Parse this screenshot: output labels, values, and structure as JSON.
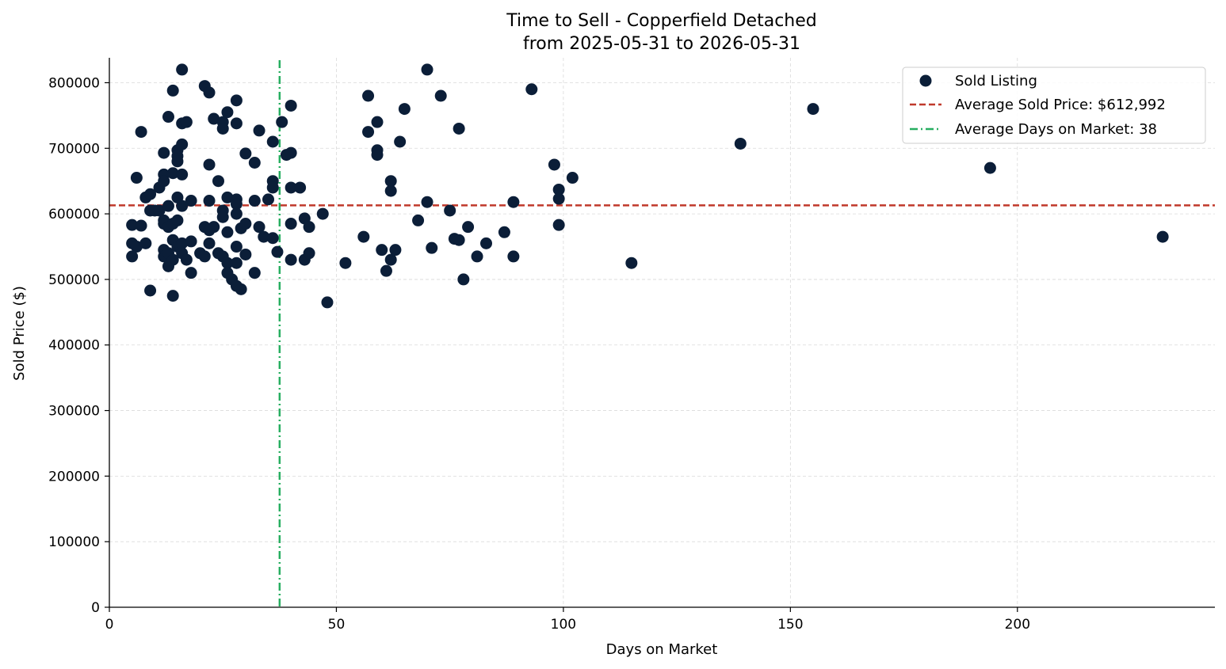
{
  "chart_data": {
    "type": "scatter",
    "title": "Time to Sell - Copperfield Detached",
    "subtitle": "from 2025-05-31 to 2026-05-31",
    "xlabel": "Days on Market",
    "ylabel": "Sold Price ($)",
    "xlim": [
      0,
      243.5
    ],
    "ylim": [
      0,
      838000
    ],
    "x_ticks": [
      0,
      50,
      100,
      150,
      200
    ],
    "y_ticks": [
      0,
      100000,
      200000,
      300000,
      400000,
      500000,
      600000,
      700000,
      800000
    ],
    "grid": true,
    "legend_position": "top-right",
    "colors": {
      "points": "#0b1e38",
      "avg_price_line": "#c0392b",
      "avg_days_line": "#27ae60",
      "grid": "#d9d9d9"
    },
    "reference_lines": [
      {
        "type": "horizontal",
        "label": "Average Sold Price: $612,992",
        "value": 612992,
        "style": "dashed"
      },
      {
        "type": "vertical",
        "label": "Average Days on Market: 38",
        "value": 37.5,
        "style": "dashdot"
      }
    ],
    "series": [
      {
        "name": "Sold Listing",
        "points": [
          [
            5,
            583000
          ],
          [
            5,
            555000
          ],
          [
            5,
            535000
          ],
          [
            6,
            655000
          ],
          [
            6,
            550000
          ],
          [
            7,
            725000
          ],
          [
            7,
            582000
          ],
          [
            8,
            625000
          ],
          [
            8,
            555000
          ],
          [
            9,
            630000
          ],
          [
            9,
            605000
          ],
          [
            9,
            483000
          ],
          [
            10,
            605000
          ],
          [
            11,
            640000
          ],
          [
            11,
            605000
          ],
          [
            12,
            693000
          ],
          [
            12,
            660000
          ],
          [
            12,
            650000
          ],
          [
            12,
            590000
          ],
          [
            12,
            585000
          ],
          [
            12,
            545000
          ],
          [
            12,
            535000
          ],
          [
            13,
            748000
          ],
          [
            13,
            612000
          ],
          [
            13,
            580000
          ],
          [
            13,
            540000
          ],
          [
            13,
            520000
          ],
          [
            14,
            788000
          ],
          [
            14,
            662000
          ],
          [
            14,
            585000
          ],
          [
            14,
            560000
          ],
          [
            14,
            530000
          ],
          [
            14,
            475000
          ],
          [
            15,
            697000
          ],
          [
            15,
            688000
          ],
          [
            15,
            680000
          ],
          [
            15,
            625000
          ],
          [
            15,
            590000
          ],
          [
            15,
            550000
          ],
          [
            16,
            820000
          ],
          [
            16,
            738000
          ],
          [
            16,
            706000
          ],
          [
            16,
            660000
          ],
          [
            16,
            612000
          ],
          [
            16,
            555000
          ],
          [
            16,
            540000
          ],
          [
            17,
            740000
          ],
          [
            17,
            530000
          ],
          [
            18,
            620000
          ],
          [
            18,
            558000
          ],
          [
            18,
            510000
          ],
          [
            20,
            540000
          ],
          [
            21,
            795000
          ],
          [
            21,
            580000
          ],
          [
            21,
            535000
          ],
          [
            22,
            785000
          ],
          [
            22,
            675000
          ],
          [
            22,
            620000
          ],
          [
            22,
            575000
          ],
          [
            22,
            555000
          ],
          [
            23,
            745000
          ],
          [
            23,
            580000
          ],
          [
            24,
            650000
          ],
          [
            24,
            540000
          ],
          [
            25,
            740000
          ],
          [
            25,
            730000
          ],
          [
            25,
            605000
          ],
          [
            25,
            595000
          ],
          [
            25,
            535000
          ],
          [
            26,
            755000
          ],
          [
            26,
            625000
          ],
          [
            26,
            572000
          ],
          [
            26,
            525000
          ],
          [
            26,
            510000
          ],
          [
            27,
            500000
          ],
          [
            28,
            773000
          ],
          [
            28,
            738000
          ],
          [
            28,
            622000
          ],
          [
            28,
            615000
          ],
          [
            28,
            600000
          ],
          [
            28,
            550000
          ],
          [
            28,
            525000
          ],
          [
            28,
            490000
          ],
          [
            29,
            485000
          ],
          [
            29,
            578000
          ],
          [
            30,
            692000
          ],
          [
            30,
            585000
          ],
          [
            30,
            538000
          ],
          [
            32,
            678000
          ],
          [
            32,
            620000
          ],
          [
            32,
            510000
          ],
          [
            33,
            727000
          ],
          [
            33,
            580000
          ],
          [
            34,
            565000
          ],
          [
            35,
            622000
          ],
          [
            36,
            710000
          ],
          [
            36,
            650000
          ],
          [
            36,
            640000
          ],
          [
            36,
            563000
          ],
          [
            37,
            542000
          ],
          [
            38,
            740000
          ],
          [
            39,
            690000
          ],
          [
            40,
            765000
          ],
          [
            40,
            693000
          ],
          [
            40,
            640000
          ],
          [
            40,
            585000
          ],
          [
            40,
            530000
          ],
          [
            42,
            640000
          ],
          [
            43,
            593000
          ],
          [
            43,
            530000
          ],
          [
            44,
            580000
          ],
          [
            44,
            540000
          ],
          [
            47,
            600000
          ],
          [
            48,
            465000
          ],
          [
            52,
            525000
          ],
          [
            56,
            565000
          ],
          [
            57,
            780000
          ],
          [
            57,
            725000
          ],
          [
            59,
            740000
          ],
          [
            59,
            697000
          ],
          [
            59,
            690000
          ],
          [
            60,
            545000
          ],
          [
            61,
            513000
          ],
          [
            62,
            650000
          ],
          [
            62,
            635000
          ],
          [
            62,
            530000
          ],
          [
            63,
            545000
          ],
          [
            64,
            710000
          ],
          [
            65,
            760000
          ],
          [
            68,
            590000
          ],
          [
            70,
            820000
          ],
          [
            70,
            618000
          ],
          [
            71,
            548000
          ],
          [
            73,
            780000
          ],
          [
            75,
            605000
          ],
          [
            76,
            562000
          ],
          [
            77,
            730000
          ],
          [
            77,
            560000
          ],
          [
            78,
            500000
          ],
          [
            79,
            580000
          ],
          [
            81,
            535000
          ],
          [
            83,
            555000
          ],
          [
            87,
            572000
          ],
          [
            89,
            618000
          ],
          [
            89,
            535000
          ],
          [
            93,
            790000
          ],
          [
            98,
            675000
          ],
          [
            99,
            637000
          ],
          [
            99,
            623000
          ],
          [
            99,
            583000
          ],
          [
            102,
            655000
          ],
          [
            115,
            525000
          ],
          [
            139,
            707000
          ],
          [
            155,
            760000
          ],
          [
            194,
            670000
          ],
          [
            232,
            565000
          ]
        ]
      }
    ]
  }
}
